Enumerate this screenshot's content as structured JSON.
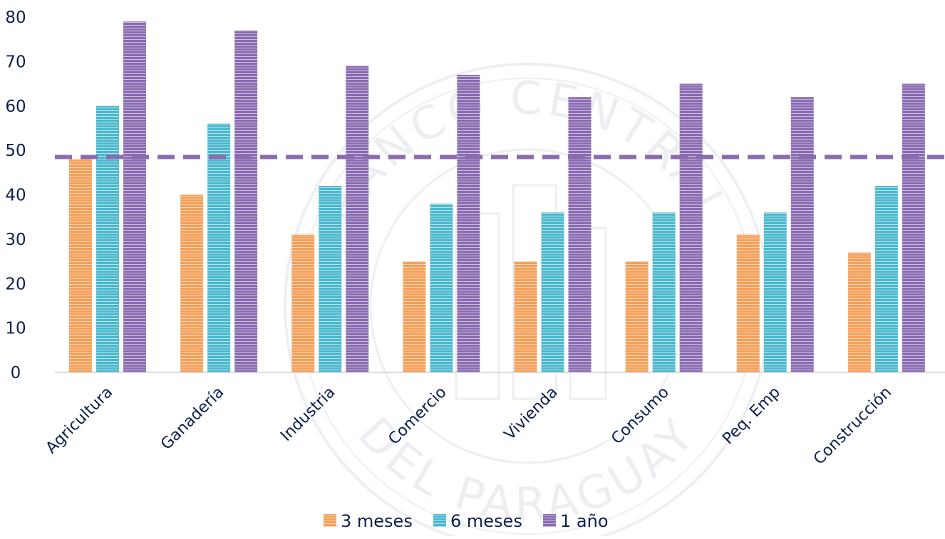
{
  "chart_data": {
    "type": "bar",
    "title": "",
    "xlabel": "",
    "ylabel": "",
    "ylim": [
      0,
      80
    ],
    "yticks": [
      "0",
      "10",
      "20",
      "30",
      "40",
      "50",
      "60",
      "70",
      "80"
    ],
    "categories": [
      "Agricultura",
      "Ganadería",
      "Industria",
      "Comercio",
      "Vivienda",
      "Consumo",
      "Peq. Emp",
      "Construcción"
    ],
    "series": [
      {
        "name": "3 meses",
        "color": "#f5a05a",
        "values": [
          48,
          40,
          31,
          25,
          25,
          25,
          31,
          27
        ]
      },
      {
        "name": "6 meses",
        "color": "#4bb8cc",
        "values": [
          60,
          56,
          42,
          38,
          36,
          36,
          36,
          42
        ]
      },
      {
        "name": "1 año",
        "color": "#8a6bb0",
        "values": [
          79,
          77,
          69,
          67,
          62,
          65,
          62,
          65
        ]
      }
    ],
    "reference_line": {
      "value": 48.5,
      "color": "#8a6bb0",
      "style": "dashed"
    },
    "legend_position": "bottom",
    "grid": false,
    "watermark": {
      "text_top": "BANCO CENTRAL",
      "text_bottom": "DEL PARAGUAY"
    }
  }
}
